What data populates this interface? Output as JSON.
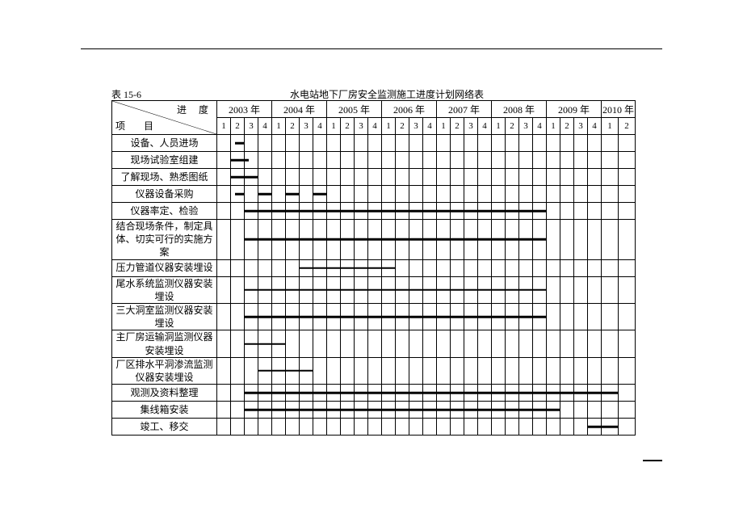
{
  "table_number": "表 15-6",
  "title": "水电站地下厂房安全监测施工进度计划网络表",
  "corner": {
    "progress": "进  度",
    "item": "项  目"
  },
  "years": [
    {
      "label": "2003 年",
      "quarters": 4
    },
    {
      "label": "2004 年",
      "quarters": 4
    },
    {
      "label": "2005 年",
      "quarters": 4
    },
    {
      "label": "2006 年",
      "quarters": 4
    },
    {
      "label": "2007 年",
      "quarters": 4
    },
    {
      "label": "2008 年",
      "quarters": 4
    },
    {
      "label": "2009 年",
      "quarters": 4
    },
    {
      "label": "2010 年",
      "quarters": 2
    }
  ],
  "total_quarters": 30,
  "rows": [
    {
      "label": "设备、人员进场",
      "tall": false,
      "bars": [
        {
          "start": 2.3,
          "end": 3.0
        }
      ]
    },
    {
      "label": "现场试验室组建",
      "tall": false,
      "bars": [
        {
          "start": 2.0,
          "end": 3.3
        }
      ]
    },
    {
      "label": "了解现场、熟悉图纸",
      "tall": false,
      "bars": [
        {
          "start": 2.0,
          "end": 4.0
        }
      ]
    },
    {
      "label": "仪器设备采购",
      "tall": false,
      "bars": [
        {
          "start": 2.3,
          "end": 3.0
        },
        {
          "start": 4.0,
          "end": 5.0
        },
        {
          "start": 6.0,
          "end": 7.0
        },
        {
          "start": 8.0,
          "end": 9.0
        }
      ]
    },
    {
      "label": "仪器率定、检验",
      "tall": false,
      "bars": [
        {
          "start": 3.0,
          "end": 25.0
        }
      ]
    },
    {
      "label": "结合现场条件，制定具体、切实可行的实施方案",
      "tall": true,
      "bars": [
        {
          "start": 3.0,
          "end": 25.0
        }
      ]
    },
    {
      "label": "压力管道仪器安装埋设",
      "tall": false,
      "bars": [
        {
          "start": 7.0,
          "end": 14.0
        }
      ]
    },
    {
      "label": "尾水系统监测仪器安装埋设",
      "tall": true,
      "bars": [
        {
          "start": 3.0,
          "end": 25.0
        }
      ]
    },
    {
      "label": "三大洞室监测仪器安装埋设",
      "tall": true,
      "bars": [
        {
          "start": 3.0,
          "end": 25.0
        }
      ]
    },
    {
      "label": "主厂房运输洞监测仪器安装埋设",
      "tall": true,
      "bars": [
        {
          "start": 3.0,
          "end": 6.0
        }
      ]
    },
    {
      "label": "厂区排水平洞渗流监测仪器安装埋设",
      "tall": true,
      "bars": [
        {
          "start": 4.0,
          "end": 8.0
        }
      ]
    },
    {
      "label": "观测及资料整理",
      "tall": false,
      "bars": [
        {
          "start": 3.0,
          "end": 30.0
        }
      ]
    },
    {
      "label": "集线箱安装",
      "tall": false,
      "bars": [
        {
          "start": 3.0,
          "end": 26.0
        }
      ]
    },
    {
      "label": "竣工、移交",
      "tall": false,
      "bars": [
        {
          "start": 28.0,
          "end": 30.0
        }
      ]
    }
  ],
  "colors": {
    "border": "#000000",
    "bar": "#000000",
    "bg": "#ffffff"
  }
}
